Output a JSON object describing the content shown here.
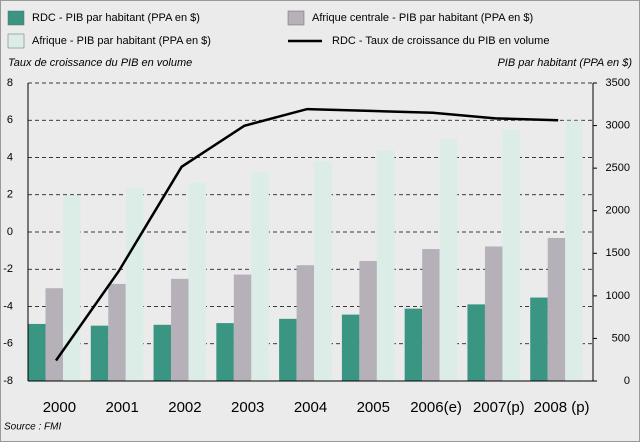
{
  "chart_data": {
    "type": "bar-line",
    "y_label": "Taux de croissance du PIB en volume",
    "y2_label": "PIB par habitant (PPA en $)",
    "source": "Source : FMI",
    "categories": [
      "2000",
      "2001",
      "2002",
      "2003",
      "2004",
      "2005",
      "2006(e)",
      "2007(p)",
      "2008 (p)"
    ],
    "series": [
      {
        "name": "RDC - PIB par habitant (PPA en $)",
        "color": "#3a9582",
        "axis": "y2",
        "kind": "bar",
        "values": [
          670,
          650,
          660,
          680,
          730,
          780,
          850,
          900,
          980
        ]
      },
      {
        "name": "Afrique centrale - PIB par habitant (PPA en $)",
        "color": "#b6b1b9",
        "axis": "y2",
        "kind": "bar",
        "values": [
          1090,
          1140,
          1200,
          1250,
          1360,
          1410,
          1550,
          1580,
          1680
        ]
      },
      {
        "name": "Afrique - PIB par habitant (PPA en $)",
        "color": "#dbede6",
        "axis": "y2",
        "kind": "bar",
        "values": [
          2180,
          2270,
          2330,
          2450,
          2580,
          2710,
          2840,
          2950,
          3060
        ]
      },
      {
        "name": "RDC - Taux de croissance du PIB en volume",
        "color": "#000000",
        "axis": "y",
        "kind": "line",
        "values": [
          -6.9,
          -2.1,
          3.5,
          5.7,
          6.6,
          6.5,
          6.4,
          6.1,
          6.0
        ]
      }
    ],
    "ylim": [
      -8,
      8
    ],
    "yticks": [
      -8,
      -6,
      -4,
      -2,
      0,
      2,
      4,
      6,
      8
    ],
    "y2lim": [
      0,
      3500
    ],
    "y2ticks": [
      0,
      500,
      1000,
      1500,
      2000,
      2500,
      3000,
      3500
    ],
    "grid": true
  }
}
